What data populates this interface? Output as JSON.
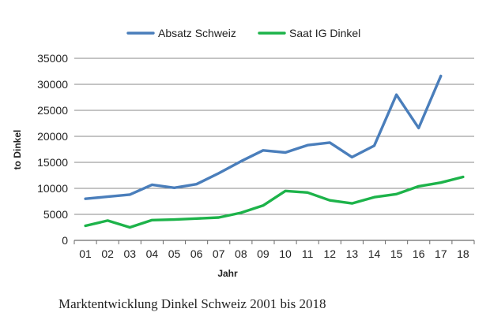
{
  "chart_data": {
    "type": "line",
    "title": "",
    "caption": "Marktentwicklung Dinkel Schweiz 2001 bis 2018",
    "xlabel": "Jahr",
    "ylabel": "to Dinkel",
    "categories": [
      "01",
      "02",
      "03",
      "04",
      "05",
      "06",
      "07",
      "08",
      "09",
      "10",
      "11",
      "12",
      "13",
      "14",
      "15",
      "16",
      "17",
      "18"
    ],
    "ylim": [
      0,
      35000
    ],
    "yticks": [
      0,
      5000,
      10000,
      15000,
      20000,
      25000,
      30000,
      35000
    ],
    "ytick_labels": [
      "0",
      "5000",
      "10000",
      "15000",
      "20000",
      "25000",
      "30000",
      "35000"
    ],
    "grid": "horizontal",
    "legend_position": "top",
    "series": [
      {
        "name": "Absatz Schweiz",
        "color": "#4a7ebb",
        "values": [
          8000,
          8400,
          8800,
          10700,
          10100,
          10800,
          12900,
          15200,
          17300,
          16900,
          18300,
          18800,
          16000,
          18200,
          28000,
          21600,
          31600,
          null
        ]
      },
      {
        "name": "Saat IG Dinkel",
        "color": "#1db34a",
        "values": [
          2800,
          3800,
          2500,
          3900,
          4000,
          4200,
          4400,
          5300,
          6700,
          9500,
          9200,
          7700,
          7100,
          8300,
          8900,
          10400,
          11100,
          12200
        ]
      }
    ]
  }
}
